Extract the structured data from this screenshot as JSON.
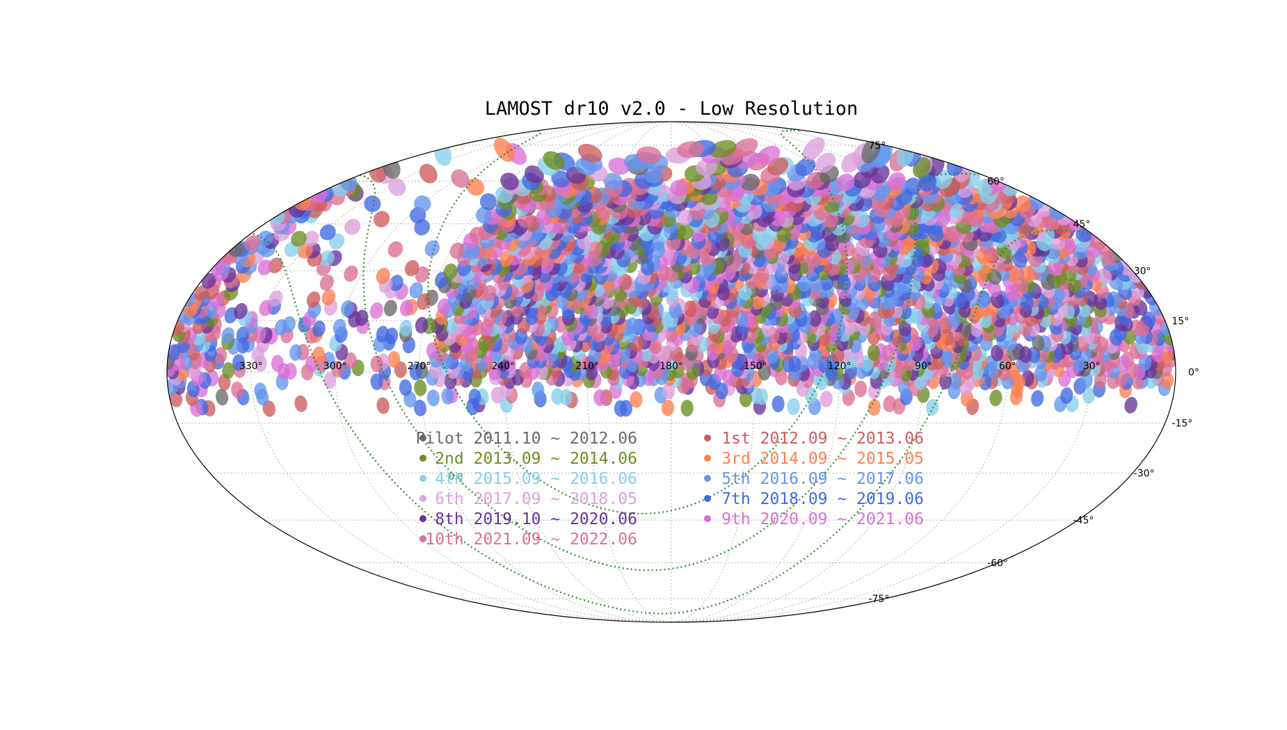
{
  "chart_data": {
    "type": "scatter",
    "projection": "mollweide",
    "title": "LAMOST dr10 v2.0 - Low Resolution",
    "grid": true,
    "legend_position": "lower-center",
    "x_ticks": [
      "330°",
      "300°",
      "270°",
      "240°",
      "210°",
      "180°",
      "150°",
      "120°",
      "90°",
      "60°",
      "30°"
    ],
    "x_tick_values": [
      330,
      300,
      270,
      240,
      210,
      180,
      150,
      120,
      90,
      60,
      30
    ],
    "y_ticks": [
      "75°",
      "60°",
      "45°",
      "30°",
      "15°",
      "0°",
      "-15°",
      "-30°",
      "-45°",
      "-60°",
      "-75°"
    ],
    "y_tick_values": [
      75,
      60,
      45,
      30,
      15,
      0,
      -15,
      -30,
      -45,
      -60,
      -75
    ],
    "overlay_curve_label": "0.0",
    "overlay_curve_color": "#228b22",
    "series": [
      {
        "name": "Pilot 2011.10 ~ 2012.06",
        "color": "#696969"
      },
      {
        "name": "1st 2012.09 ~ 2013.06",
        "color": "#cd5c5c"
      },
      {
        "name": "2nd 2013.09 ~ 2014.06",
        "color": "#6b8e23"
      },
      {
        "name": "3rd 2014.09 ~ 2015.05",
        "color": "#ff7f50"
      },
      {
        "name": "4th 2015.09 ~ 2016.06",
        "color": "#87ceeb"
      },
      {
        "name": "5th 2016.09 ~ 2017.06",
        "color": "#6495ed"
      },
      {
        "name": "6th 2017.09 ~ 2018.05",
        "color": "#dda0dd"
      },
      {
        "name": "7th 2018.09 ~ 2019.06",
        "color": "#4169e1"
      },
      {
        "name": "8th 2019.10 ~ 2020.06",
        "color": "#663399"
      },
      {
        "name": "9th 2020.09 ~ 2021.06",
        "color": "#da70d6"
      },
      {
        "name": "10th 2021.09 ~ 2022.06",
        "color": "#db7093"
      }
    ],
    "coverage": {
      "dec_range": [
        -10,
        75
      ],
      "ra_range": [
        0,
        360
      ],
      "sparse_ra_range": [
        265,
        345
      ]
    }
  }
}
